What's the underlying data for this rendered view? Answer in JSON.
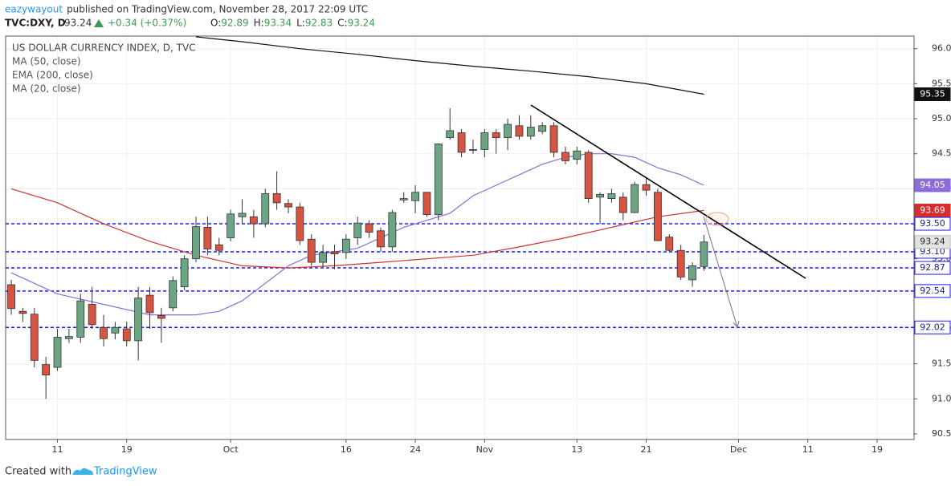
{
  "header": {
    "author": "eazywayout",
    "published": "published on TradingView.com, November 28, 2017 22:09 UTC",
    "symbol": "TVC:DXY, D",
    "last": "93.24",
    "change": "+0.34 (+0.37%)",
    "ohlc": [
      {
        "key": "O:",
        "value": "92.89"
      },
      {
        "key": "H:",
        "value": "93.34"
      },
      {
        "key": "L:",
        "value": "92.83"
      },
      {
        "key": "C:",
        "value": "93.24"
      }
    ]
  },
  "footer": {
    "created": "Created with",
    "brand": "TradingView"
  },
  "chart_data": {
    "type": "candlestick",
    "title": "US DOLLAR CURRENCY INDEX, D, TVC",
    "up_color": "#6ba583",
    "down_color": "#d75442",
    "x": [
      0,
      1,
      2,
      3,
      4,
      5,
      6,
      7,
      8,
      9,
      10,
      11,
      12,
      13,
      14,
      15,
      16,
      17,
      18,
      19,
      20,
      21,
      22,
      23,
      24,
      25,
      26,
      27,
      28,
      29,
      30,
      31,
      32,
      33,
      34,
      35,
      36,
      37,
      38,
      39,
      40,
      41,
      42,
      43,
      44,
      45,
      46,
      47,
      48,
      49,
      50,
      51,
      52,
      53,
      54,
      55,
      56,
      57,
      58,
      59,
      60
    ],
    "open": [
      92.63,
      92.25,
      92.21,
      91.49,
      91.45,
      91.86,
      91.88,
      92.35,
      92.02,
      91.94,
      92.0,
      91.83,
      92.48,
      92.19,
      92.3,
      92.6,
      93.0,
      93.45,
      93.2,
      93.3,
      93.6,
      93.6,
      93.5,
      93.93,
      93.79,
      93.74,
      93.28,
      92.95,
      93.1,
      93.09,
      93.3,
      93.5,
      93.4,
      93.17,
      93.84,
      93.83,
      93.95,
      93.63,
      94.73,
      94.8,
      94.55,
      94.56,
      94.8,
      94.73,
      94.9,
      94.75,
      94.82,
      94.9,
      94.52,
      94.42,
      94.52,
      93.88,
      93.86,
      93.88,
      93.66,
      94.06,
      93.95,
      93.31,
      93.12,
      92.7,
      92.89
    ],
    "high": [
      92.7,
      92.3,
      92.3,
      91.6,
      92.0,
      92.0,
      92.5,
      92.6,
      92.2,
      92.1,
      92.1,
      92.6,
      92.6,
      92.3,
      92.75,
      93.05,
      93.6,
      93.6,
      93.3,
      93.7,
      93.85,
      93.7,
      94.0,
      94.25,
      93.85,
      93.8,
      93.35,
      93.2,
      93.2,
      93.35,
      93.6,
      93.55,
      93.45,
      93.7,
      93.95,
      94.05,
      93.95,
      94.65,
      95.15,
      94.85,
      94.7,
      94.85,
      94.85,
      95.0,
      95.05,
      95.05,
      94.95,
      94.95,
      94.6,
      94.6,
      94.55,
      93.95,
      94.0,
      93.95,
      94.1,
      94.15,
      94.0,
      93.35,
      93.2,
      92.95,
      93.34
    ],
    "low": [
      92.2,
      92.1,
      91.45,
      91.0,
      91.4,
      91.8,
      91.8,
      92.0,
      91.75,
      91.85,
      91.75,
      91.55,
      92.0,
      91.8,
      92.25,
      92.55,
      92.95,
      93.05,
      93.05,
      93.25,
      93.5,
      93.3,
      93.45,
      93.7,
      93.65,
      93.2,
      92.9,
      92.88,
      92.85,
      93.0,
      93.2,
      93.3,
      93.1,
      93.1,
      93.8,
      93.65,
      93.6,
      93.55,
      94.7,
      94.45,
      94.5,
      94.45,
      94.5,
      94.55,
      94.7,
      94.7,
      94.78,
      94.45,
      94.35,
      94.35,
      93.8,
      93.5,
      93.8,
      93.55,
      93.65,
      93.9,
      93.25,
      93.1,
      92.7,
      92.6,
      92.83
    ],
    "close": [
      92.29,
      92.22,
      91.55,
      91.34,
      91.88,
      91.89,
      92.4,
      92.06,
      91.86,
      92.02,
      91.83,
      92.44,
      92.23,
      92.15,
      92.69,
      93.0,
      93.46,
      93.14,
      93.12,
      93.64,
      93.65,
      93.5,
      93.93,
      93.8,
      93.74,
      93.26,
      92.95,
      93.09,
      93.07,
      93.28,
      93.51,
      93.38,
      93.17,
      93.66,
      93.86,
      93.95,
      93.63,
      94.64,
      94.83,
      94.52,
      94.56,
      94.8,
      94.73,
      94.92,
      94.75,
      94.88,
      94.9,
      94.52,
      94.4,
      94.54,
      93.86,
      93.92,
      93.93,
      93.66,
      94.06,
      93.98,
      93.26,
      93.12,
      92.74,
      92.9,
      93.24
    ],
    "series": [
      {
        "name": "MA (50, close)",
        "color": "#d32f2f",
        "x": [
          0,
          4,
          8,
          12,
          16,
          20,
          24,
          28,
          32,
          36,
          40,
          44,
          48,
          52,
          56,
          60
        ],
        "values": [
          94.0,
          93.8,
          93.5,
          93.25,
          93.05,
          92.9,
          92.87,
          92.9,
          92.95,
          93.0,
          93.05,
          93.17,
          93.3,
          93.45,
          93.6,
          93.69
        ]
      },
      {
        "name": "EMA (200, close)",
        "color": "#111111",
        "x": [
          16,
          20,
          25,
          30,
          35,
          40,
          45,
          50,
          55,
          60
        ],
        "values": [
          96.17,
          96.1,
          96.0,
          95.92,
          95.83,
          95.75,
          95.68,
          95.6,
          95.5,
          95.35
        ]
      },
      {
        "name": "MA (20, close)",
        "color": "#8b6cd8",
        "x": [
          0,
          4,
          8,
          12,
          16,
          18,
          20,
          22,
          24,
          26,
          28,
          30,
          32,
          34,
          36,
          38,
          40,
          42,
          44,
          46,
          48,
          50,
          52,
          54,
          56,
          58,
          60
        ],
        "values": [
          92.8,
          92.5,
          92.35,
          92.2,
          92.2,
          92.25,
          92.4,
          92.65,
          92.9,
          93.05,
          93.1,
          93.15,
          93.3,
          93.45,
          93.55,
          93.65,
          93.9,
          94.05,
          94.2,
          94.35,
          94.45,
          94.5,
          94.5,
          94.45,
          94.3,
          94.2,
          94.05
        ]
      }
    ],
    "hlines": [
      {
        "value": 93.5,
        "label": "93.50"
      },
      {
        "value": 93.1,
        "label": "93.10"
      },
      92.87,
      92.54,
      92.02
    ],
    "hline_color": "#1a1aff",
    "xlim": [
      -0.49,
      78.2
    ],
    "ylim": [
      90.42,
      96.18
    ],
    "xticks": [
      {
        "value": 4,
        "label": "11"
      },
      {
        "value": 10,
        "label": "19"
      },
      {
        "value": 19,
        "label": "Oct"
      },
      {
        "value": 29,
        "label": "16"
      },
      {
        "value": 35,
        "label": "24"
      },
      {
        "value": 41,
        "label": "Nov"
      },
      {
        "value": 49,
        "label": "13"
      },
      {
        "value": 55,
        "label": "21"
      },
      {
        "value": 63,
        "label": "Dec"
      },
      {
        "value": 69,
        "label": "11"
      },
      {
        "value": 75,
        "label": "19"
      }
    ],
    "yticks": [
      {
        "value": 90.5,
        "label": "90.50"
      },
      {
        "value": 91,
        "label": "91.00"
      },
      {
        "value": 91.5,
        "label": "91.50"
      },
      {
        "value": 92,
        "label": "92.00"
      },
      {
        "value": 92.5,
        "label": "92.50"
      },
      {
        "value": 93,
        "label": "93.00"
      },
      {
        "value": 93.5,
        "label": "93.50"
      },
      {
        "value": 94,
        "label": "94.00"
      },
      {
        "value": 94.5,
        "label": "94.50"
      },
      {
        "value": 95,
        "label": "95.00"
      },
      {
        "value": 95.5,
        "label": "95.50"
      },
      {
        "value": 96,
        "label": "96.00"
      }
    ],
    "grid": true
  }
}
